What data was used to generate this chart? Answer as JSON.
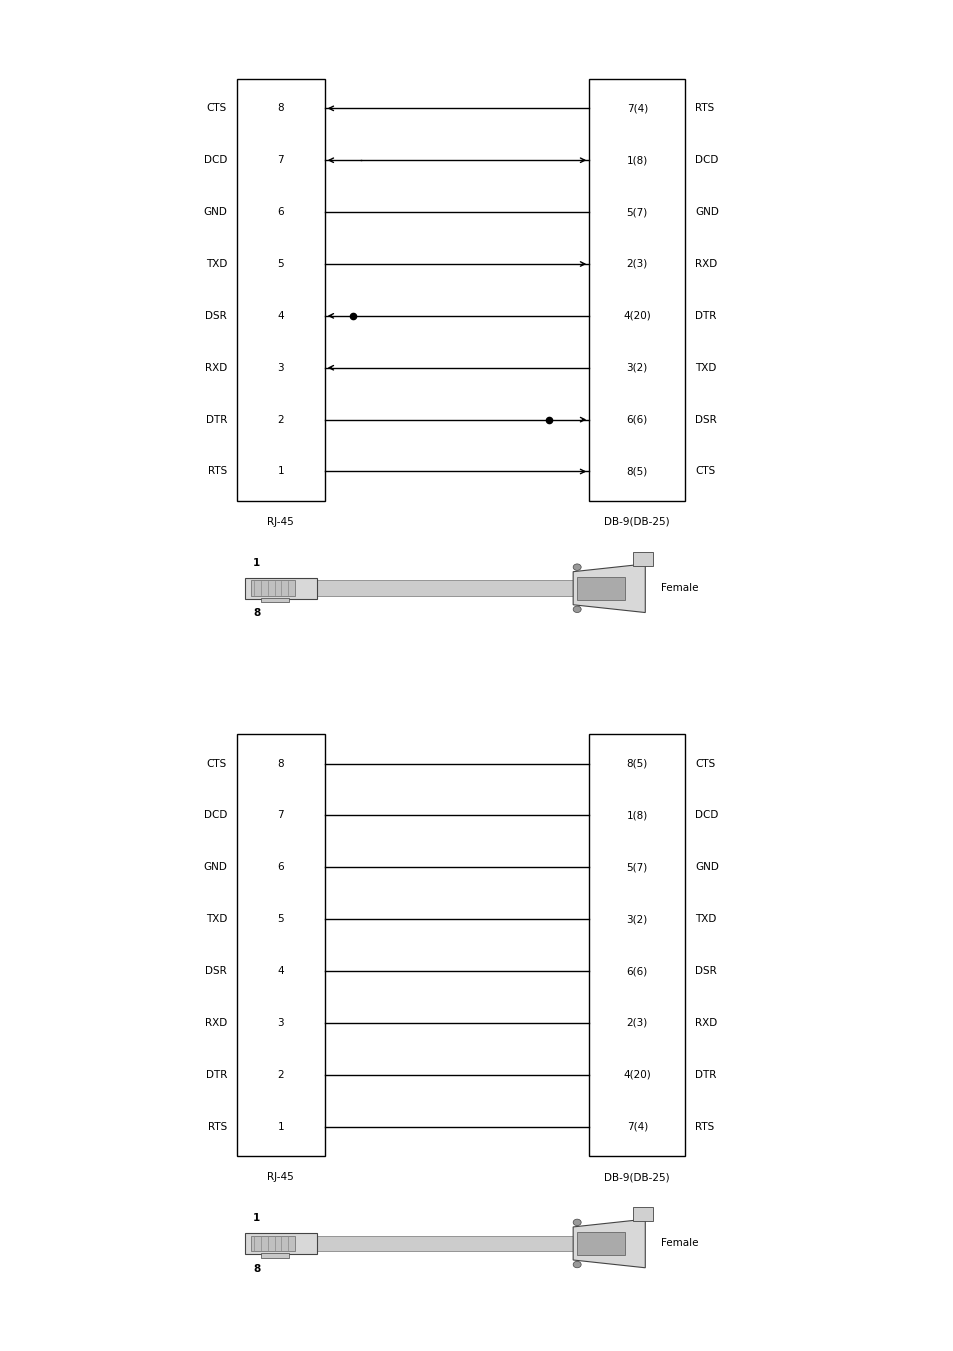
{
  "bg_color": "#ffffff",
  "diagram1": {
    "left_labels": [
      "CTS",
      "DCD",
      "GND",
      "TXD",
      "DSR",
      "RXD",
      "DTR",
      "RTS"
    ],
    "left_pins": [
      "8",
      "7",
      "6",
      "5",
      "4",
      "3",
      "2",
      "1"
    ],
    "right_labels": [
      "RTS",
      "DCD",
      "GND",
      "RXD",
      "DTR",
      "TXD",
      "DSR",
      "CTS"
    ],
    "right_pins": [
      "7(4)",
      "1(8)",
      "5(7)",
      "2(3)",
      "4(20)",
      "3(2)",
      "6(6)",
      "8(5)"
    ],
    "connections": [
      {
        "lpin": "8",
        "rpin": "7(4)",
        "arrow": "left",
        "dot_r": false,
        "type": "diagonal"
      },
      {
        "lpin": "7",
        "rpin": "1(8)",
        "arrow": "both",
        "dot_r": false,
        "type": "split_right"
      },
      {
        "lpin": "6",
        "rpin": "5(7)",
        "arrow": "none",
        "dot_r": false,
        "type": "diagonal"
      },
      {
        "lpin": "5",
        "rpin": "2(3)",
        "arrow": "right",
        "dot_r": false,
        "type": "diagonal"
      },
      {
        "lpin": "4",
        "rpin": "4(20)",
        "arrow": "left",
        "dot_r": false,
        "type": "tee_left"
      },
      {
        "lpin": "3",
        "rpin": "3(2)",
        "arrow": "left",
        "dot_r": false,
        "type": "diagonal"
      },
      {
        "lpin": "2",
        "rpin": "6(6)",
        "arrow": "right",
        "dot_r": true,
        "type": "diagonal"
      },
      {
        "lpin": "1",
        "rpin": "8(5)",
        "arrow": "right",
        "dot_r": false,
        "type": "diagonal"
      }
    ],
    "rj45_label": "RJ-45",
    "db_label": "DB-9(DB-25)",
    "female_label": "Female"
  },
  "diagram2": {
    "left_labels": [
      "CTS",
      "DCD",
      "GND",
      "TXD",
      "DSR",
      "RXD",
      "DTR",
      "RTS"
    ],
    "left_pins": [
      "8",
      "7",
      "6",
      "5",
      "4",
      "3",
      "2",
      "1"
    ],
    "right_labels": [
      "CTS",
      "DCD",
      "GND",
      "TXD",
      "DSR",
      "RXD",
      "DTR",
      "RTS"
    ],
    "right_pins": [
      "8(5)",
      "1(8)",
      "5(7)",
      "3(2)",
      "6(6)",
      "2(3)",
      "4(20)",
      "7(4)"
    ],
    "connections": [
      {
        "lpin": "8",
        "rpin": "8(5)",
        "arrow": "none",
        "dot_r": false,
        "type": "straight"
      },
      {
        "lpin": "7",
        "rpin": "1(8)",
        "arrow": "none",
        "dot_r": false,
        "type": "straight"
      },
      {
        "lpin": "6",
        "rpin": "5(7)",
        "arrow": "none",
        "dot_r": false,
        "type": "straight"
      },
      {
        "lpin": "5",
        "rpin": "3(2)",
        "arrow": "none",
        "dot_r": false,
        "type": "straight"
      },
      {
        "lpin": "4",
        "rpin": "6(6)",
        "arrow": "none",
        "dot_r": false,
        "type": "straight"
      },
      {
        "lpin": "3",
        "rpin": "2(3)",
        "arrow": "none",
        "dot_r": false,
        "type": "straight"
      },
      {
        "lpin": "2",
        "rpin": "4(20)",
        "arrow": "none",
        "dot_r": false,
        "type": "straight"
      },
      {
        "lpin": "1",
        "rpin": "7(4)",
        "arrow": "none",
        "dot_r": false,
        "type": "straight"
      }
    ],
    "rj45_label": "RJ-45",
    "db_label": "DB-9(DB-25)",
    "female_label": "Female"
  }
}
